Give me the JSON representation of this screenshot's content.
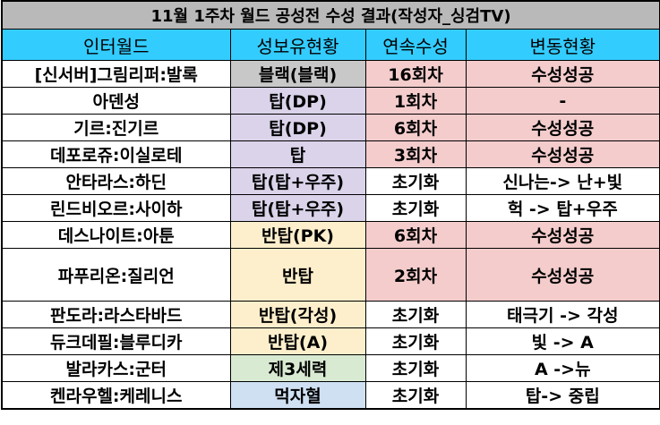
{
  "title": "11월 1주차 월드 공성전 수성 결과(작성자_싱검TV)",
  "headers": [
    "인터월드",
    "성보유현황",
    "연속수성",
    "변동현황"
  ],
  "rows": [
    {
      "world": "[신서버]그림리퍼:발록",
      "status": "블랙(블랙)",
      "streak": "16회차",
      "change": "수성성공"
    },
    {
      "world": "아덴성",
      "status": "탑(DP)",
      "streak": "1회차",
      "change": "-"
    },
    {
      "world": "기르:진기르",
      "status": "탑(DP)",
      "streak": "6회차",
      "change": "수성성공"
    },
    {
      "world": "데포로쥬:이실로테",
      "status": "탑",
      "streak": "3회차",
      "change": "수성성공"
    },
    {
      "world": "안타라스:하딘",
      "status": "탑(탑+우주)",
      "streak": "초기화",
      "change": "신나는-> 난+빛"
    },
    {
      "world": "린드비오르:사이하",
      "status": "탑(탑+우주)",
      "streak": "초기화",
      "change": "헉 -> 탑+우주"
    },
    {
      "world": "데스나이트:아툰",
      "status": "반탑(PK)",
      "streak": "6회차",
      "change": "수성성공"
    },
    {
      "world": "파푸리온:질리언",
      "status": "반탑",
      "streak": "2회차",
      "change": "수성성공"
    },
    {
      "world": "판도라:라스타바드",
      "status": "반탑(각성)",
      "streak": "초기화",
      "change": "태극기 -> 각성"
    },
    {
      "world": "듀크데필:블루디카",
      "status": "반탑(A)",
      "streak": "초기화",
      "change": "빛 -> A"
    },
    {
      "world": "발라카스:군터",
      "status": "제3세력",
      "streak": "초기화",
      "change": "A ->뉴"
    },
    {
      "world": "켄라우헬:케레니스",
      "status": "먹자혈",
      "streak": "초기화",
      "change": "탑-> 중립"
    }
  ],
  "colors": {
    "title_bg": "#b9b9b9",
    "header_bg": "#33ccff",
    "black_guild": "#c8c8c8",
    "top_guild": "#dad3ea",
    "half_top_guild": "#fdefcc",
    "third_force": "#d9ead3",
    "eating_guild": "#cfe0f3",
    "success": "#f4cccc"
  }
}
